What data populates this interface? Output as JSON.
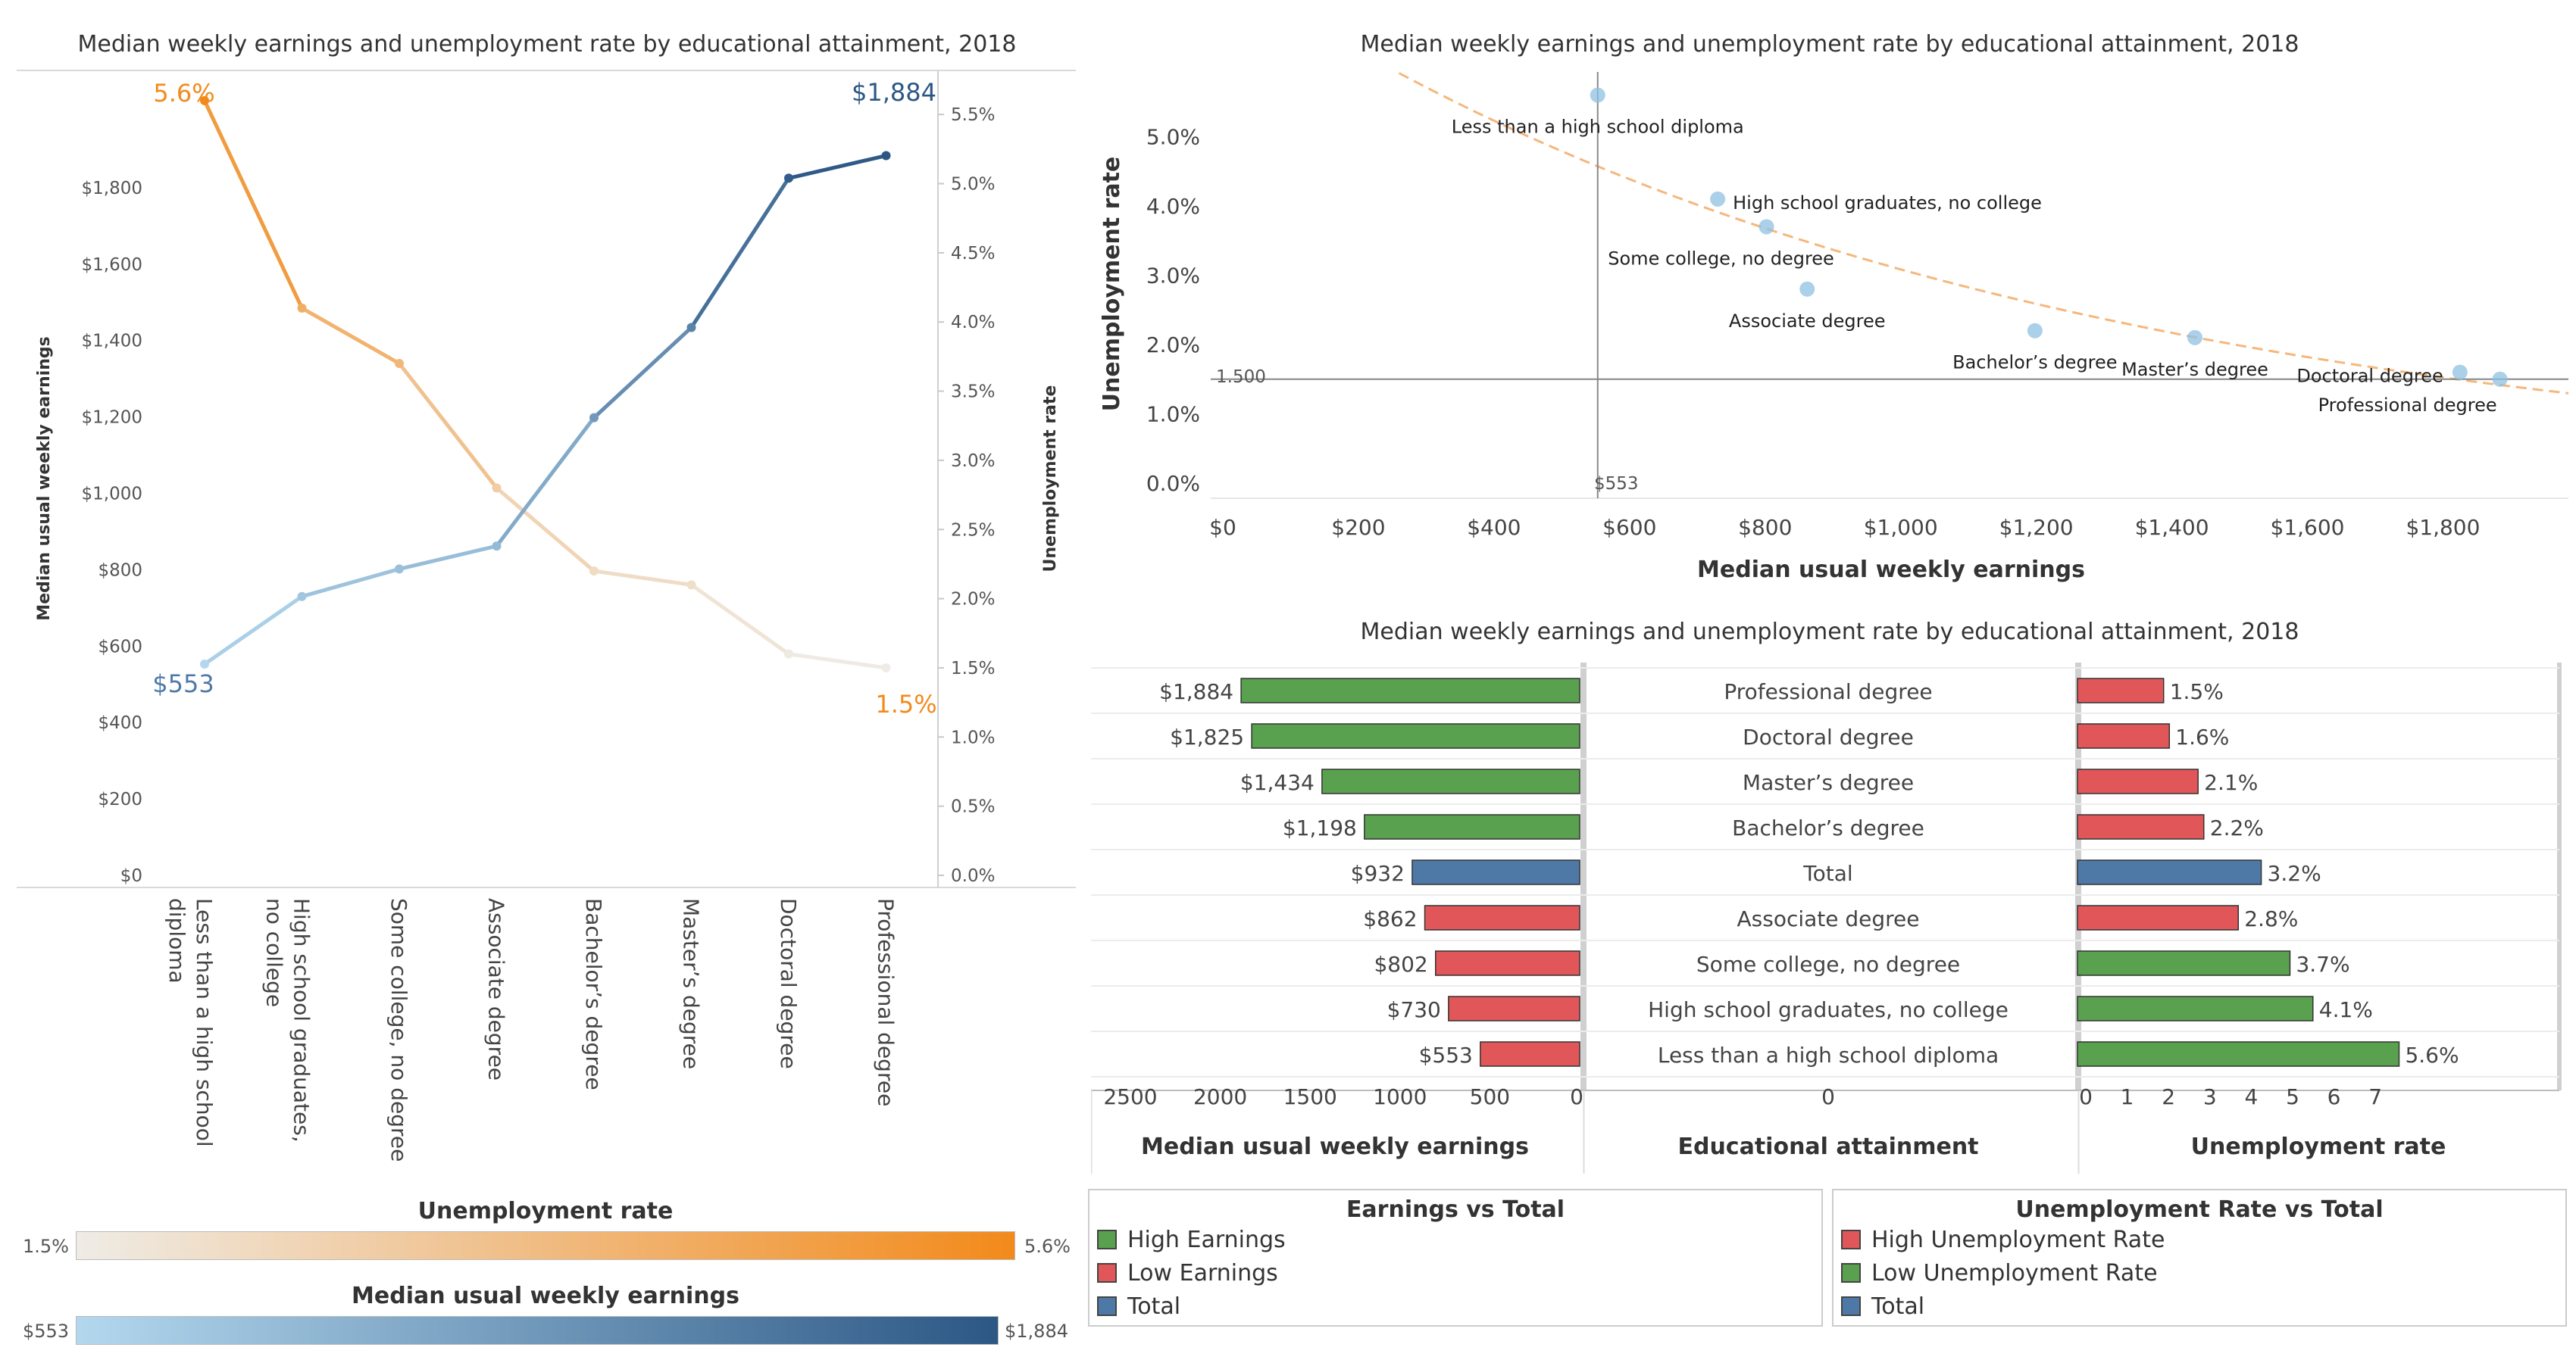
{
  "colors": {
    "earnings_light": "#b3d8ee",
    "earnings_dark": "#2c5785",
    "unemp_light": "#efece6",
    "unemp_dark": "#f28a1b",
    "high": "#59a14f",
    "low": "#e15759",
    "total": "#4e79a7",
    "trend": "#f5b77c",
    "scatter_point": "#8fc0e2"
  },
  "line_panel": {
    "title": "Median weekly earnings and unemployment rate by educational attainment, 2018",
    "left_axis_title": "Median usual weekly earnings",
    "right_axis_title": "Unemployment rate",
    "label_first_unemp": "5.6%",
    "label_last_unemp": "1.5%",
    "label_first_earn": "$553",
    "label_last_earn": "$1,884"
  },
  "scatter_panel": {
    "title": "Median weekly earnings and unemployment rate by educational attainment, 2018",
    "xlabel": "Median usual weekly earnings",
    "ylabel": "Unemployment rate",
    "ref_h_label": "1.500",
    "ref_v_label": "$553"
  },
  "bar_panel": {
    "title": "Median weekly earnings and unemployment rate by educational attainment, 2018",
    "left_axis_title": "Median usual weekly earnings",
    "middle_axis_title": "Educational attainment",
    "right_axis_title": "Unemployment rate",
    "middle_tick": "0"
  },
  "legends": {
    "unemp_ramp_title": "Unemployment rate",
    "unemp_ramp_min": "1.5%",
    "unemp_ramp_max": "5.6%",
    "earn_ramp_title": "Median usual weekly earnings",
    "earn_ramp_min": "$553",
    "earn_ramp_max": "$1,884",
    "earnings_vs_total": {
      "title": "Earnings vs Total",
      "items": [
        "High Earnings",
        "Low Earnings",
        "Total"
      ]
    },
    "unemp_vs_total": {
      "title": "Unemployment Rate vs Total",
      "items": [
        "High Unemployment Rate",
        "Low Unemployment Rate",
        "Total"
      ]
    }
  },
  "chart_data": [
    {
      "type": "line",
      "title": "Median weekly earnings and unemployment rate by educational attainment, 2018",
      "categories": [
        "Less than a high school diploma",
        "High school graduates, no college",
        "Some college, no degree",
        "Associate degree",
        "Bachelor’s degree",
        "Master’s degree",
        "Doctoral degree",
        "Professional degree"
      ],
      "series": [
        {
          "name": "Median usual weekly earnings",
          "values": [
            553,
            730,
            802,
            862,
            1198,
            1434,
            1825,
            1884
          ],
          "axis": "left"
        },
        {
          "name": "Unemployment rate",
          "values": [
            5.6,
            4.1,
            3.7,
            2.8,
            2.2,
            2.1,
            1.6,
            1.5
          ],
          "axis": "right"
        }
      ],
      "ylabel": "Median usual weekly earnings",
      "ylim": [
        0,
        1900
      ],
      "y_ticks": [
        "$0",
        "$200",
        "$400",
        "$600",
        "$800",
        "$1,000",
        "$1,200",
        "$1,400",
        "$1,600",
        "$1,800"
      ],
      "y2label": "Unemployment rate",
      "y2lim": [
        0,
        5.8
      ],
      "y2_ticks": [
        "0.0%",
        "0.5%",
        "1.0%",
        "1.5%",
        "2.0%",
        "2.5%",
        "3.0%",
        "3.5%",
        "4.0%",
        "4.5%",
        "5.0%",
        "5.5%"
      ]
    },
    {
      "type": "scatter",
      "title": "Median weekly earnings and unemployment rate by educational attainment, 2018",
      "xlabel": "Median usual weekly earnings",
      "ylabel": "Unemployment rate",
      "xlim": [
        0,
        2000
      ],
      "ylim": [
        0,
        5.8
      ],
      "x_ticks": [
        "$0",
        "$200",
        "$400",
        "$600",
        "$800",
        "$1,000",
        "$1,200",
        "$1,400",
        "$1,600",
        "$1,800"
      ],
      "y_ticks": [
        "0.0%",
        "1.0%",
        "2.0%",
        "3.0%",
        "4.0%",
        "5.0%"
      ],
      "points": [
        {
          "label": "Less than a high school diploma",
          "x": 553,
          "y": 5.6
        },
        {
          "label": "High school graduates, no college",
          "x": 730,
          "y": 4.1
        },
        {
          "label": "Some college, no degree",
          "x": 802,
          "y": 3.7
        },
        {
          "label": "Associate degree",
          "x": 862,
          "y": 2.8
        },
        {
          "label": "Bachelor’s degree",
          "x": 1198,
          "y": 2.2
        },
        {
          "label": "Master’s degree",
          "x": 1434,
          "y": 2.1
        },
        {
          "label": "Doctoral degree",
          "x": 1825,
          "y": 1.6
        },
        {
          "label": "Professional degree",
          "x": 1884,
          "y": 1.5
        }
      ],
      "reference_lines": {
        "x": 553,
        "y": 1.5
      },
      "trend_line": "exponential"
    },
    {
      "type": "bar",
      "title": "Median weekly earnings and unemployment rate by educational attainment, 2018",
      "categories": [
        "Professional degree",
        "Doctoral degree",
        "Master’s degree",
        "Bachelor’s degree",
        "Total",
        "Associate degree",
        "Some college, no degree",
        "High school graduates, no college",
        "Less than a high school diploma"
      ],
      "series": [
        {
          "name": "Median usual weekly earnings",
          "values": [
            1884,
            1825,
            1434,
            1198,
            932,
            862,
            802,
            730,
            553
          ],
          "labels": [
            "$1,884",
            "$1,825",
            "$1,434",
            "$1,198",
            "$932",
            "$862",
            "$802",
            "$730",
            "$553"
          ],
          "groups": [
            "high",
            "high",
            "high",
            "high",
            "total",
            "low",
            "low",
            "low",
            "low"
          ]
        },
        {
          "name": "Unemployment rate",
          "values": [
            1.5,
            1.6,
            2.1,
            2.2,
            3.2,
            2.8,
            3.7,
            4.1,
            5.6
          ],
          "labels": [
            "1.5%",
            "1.6%",
            "2.1%",
            "2.2%",
            "3.2%",
            "2.8%",
            "3.7%",
            "4.1%",
            "5.6%"
          ],
          "groups": [
            "low",
            "low",
            "low",
            "low",
            "total",
            "low",
            "high",
            "high",
            "high"
          ]
        }
      ],
      "earn_ticks": [
        "2500",
        "2000",
        "1500",
        "1000",
        "500",
        "0"
      ],
      "earn_lim": [
        0,
        2500
      ],
      "unemp_ticks": [
        "0",
        "1",
        "2",
        "3",
        "4",
        "5",
        "6",
        "7"
      ],
      "unemp_lim": [
        0,
        7
      ]
    }
  ]
}
